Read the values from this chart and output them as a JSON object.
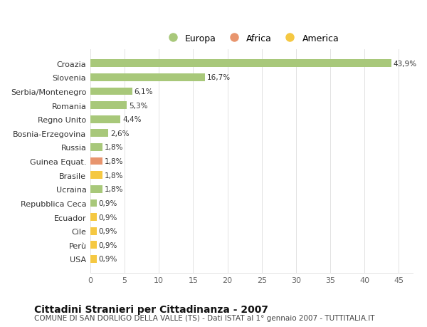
{
  "categories": [
    "USA",
    "Perù",
    "Cile",
    "Ecuador",
    "Repubblica Ceca",
    "Ucraina",
    "Brasile",
    "Guinea Equat.",
    "Russia",
    "Bosnia-Erzegovina",
    "Regno Unito",
    "Romania",
    "Serbia/Montenegro",
    "Slovenia",
    "Croazia"
  ],
  "values": [
    0.9,
    0.9,
    0.9,
    0.9,
    0.9,
    1.8,
    1.8,
    1.8,
    1.8,
    2.6,
    4.4,
    5.3,
    6.1,
    16.7,
    43.9
  ],
  "labels": [
    "0,9%",
    "0,9%",
    "0,9%",
    "0,9%",
    "0,9%",
    "1,8%",
    "1,8%",
    "1,8%",
    "1,8%",
    "2,6%",
    "4,4%",
    "5,3%",
    "6,1%",
    "16,7%",
    "43,9%"
  ],
  "colors": [
    "#f5c842",
    "#f5c842",
    "#f5c842",
    "#f5c842",
    "#a8c87a",
    "#a8c87a",
    "#f5c842",
    "#e8956e",
    "#a8c87a",
    "#a8c87a",
    "#a8c87a",
    "#a8c87a",
    "#a8c87a",
    "#a8c87a",
    "#a8c87a"
  ],
  "legend": [
    {
      "label": "Europa",
      "color": "#a8c87a"
    },
    {
      "label": "Africa",
      "color": "#e8956e"
    },
    {
      "label": "America",
      "color": "#f5c842"
    }
  ],
  "xlim": [
    0,
    47
  ],
  "xticks": [
    0,
    5,
    10,
    15,
    20,
    25,
    30,
    35,
    40,
    45
  ],
  "title": "Cittadini Stranieri per Cittadinanza - 2007",
  "subtitle": "COMUNE DI SAN DORLIGO DELLA VALLE (TS) - Dati ISTAT al 1° gennaio 2007 - TUTTITALIA.IT",
  "plot_bg": "#ffffff",
  "fig_bg": "#ffffff",
  "bar_height": 0.55,
  "title_fontsize": 10,
  "subtitle_fontsize": 7.5,
  "label_fontsize": 7.5,
  "tick_fontsize": 8,
  "legend_fontsize": 9
}
